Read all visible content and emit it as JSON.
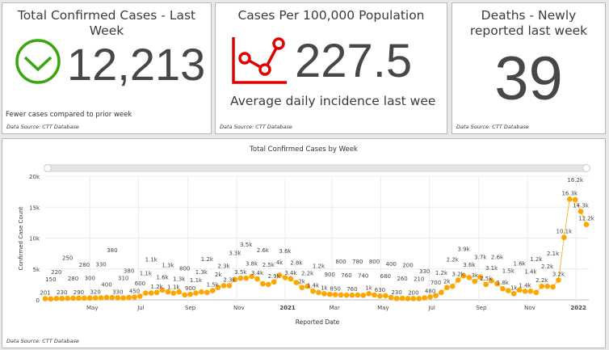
{
  "cards": [
    {
      "title": "Total Confirmed Cases - Last Week",
      "value": "12,213",
      "icon": "check-circle-icon",
      "icon_color": "#3aa60e",
      "note": "Fewer cases compared to prior week",
      "source": "Data Source: CTT Database"
    },
    {
      "title": "Cases Per 100,000 Population",
      "value": "227.5",
      "icon": "line-chart-icon",
      "icon_color": "#e00000",
      "note": "Average daily incidence last wee",
      "source": "Data Source: CTT Database"
    },
    {
      "title": "Deaths - Newly reported last week",
      "value": "39",
      "source": "Data Source: CTT Database"
    }
  ],
  "chart_source": "Data Source: CTT Database",
  "chart_data": {
    "type": "line",
    "title": "Total Confirmed Cases by Week",
    "xlabel": "Reported Date",
    "ylabel": "Confirmed Case Count",
    "ylim": [
      0,
      20000
    ],
    "grid": true,
    "color": "#ffa500",
    "yticks": [
      {
        "v": 0,
        "label": "0"
      },
      {
        "v": 5000,
        "label": "5k"
      },
      {
        "v": 10000,
        "label": "10k"
      },
      {
        "v": 15000,
        "label": "15k"
      },
      {
        "v": 20000,
        "label": "20k"
      }
    ],
    "xticks": [
      {
        "date": "2020-05-01",
        "label": "May"
      },
      {
        "date": "2020-07-01",
        "label": "Jul"
      },
      {
        "date": "2020-09-01",
        "label": "Sep"
      },
      {
        "date": "2020-11-01",
        "label": "Nov"
      },
      {
        "date": "2021-01-01",
        "label": "2021"
      },
      {
        "date": "2021-03-01",
        "label": "Mar"
      },
      {
        "date": "2021-05-01",
        "label": "May"
      },
      {
        "date": "2021-07-01",
        "label": "Jul"
      },
      {
        "date": "2021-09-01",
        "label": "Sep"
      },
      {
        "date": "2021-11-01",
        "label": "Nov"
      },
      {
        "date": "2022-01-01",
        "label": "2022"
      }
    ],
    "x": [
      "2020-03-06",
      "2020-03-13",
      "2020-03-20",
      "2020-03-27",
      "2020-04-03",
      "2020-04-10",
      "2020-04-17",
      "2020-04-24",
      "2020-05-01",
      "2020-05-08",
      "2020-05-15",
      "2020-05-22",
      "2020-05-29",
      "2020-06-05",
      "2020-06-12",
      "2020-06-19",
      "2020-06-26",
      "2020-07-03",
      "2020-07-10",
      "2020-07-17",
      "2020-07-24",
      "2020-07-31",
      "2020-08-07",
      "2020-08-14",
      "2020-08-21",
      "2020-08-28",
      "2020-09-04",
      "2020-09-11",
      "2020-09-18",
      "2020-09-25",
      "2020-10-02",
      "2020-10-09",
      "2020-10-16",
      "2020-10-23",
      "2020-10-30",
      "2020-11-06",
      "2020-11-13",
      "2020-11-20",
      "2020-11-27",
      "2020-12-04",
      "2020-12-11",
      "2020-12-18",
      "2020-12-25",
      "2021-01-01",
      "2021-01-08",
      "2021-01-15",
      "2021-01-22",
      "2021-01-29",
      "2021-02-05",
      "2021-02-12",
      "2021-02-19",
      "2021-02-26",
      "2021-03-05",
      "2021-03-12",
      "2021-03-19",
      "2021-03-26",
      "2021-04-02",
      "2021-04-09",
      "2021-04-16",
      "2021-04-23",
      "2021-04-30",
      "2021-05-07",
      "2021-05-14",
      "2021-05-21",
      "2021-05-28",
      "2021-06-04",
      "2021-06-11",
      "2021-06-18",
      "2021-06-25",
      "2021-07-02",
      "2021-07-09",
      "2021-07-16",
      "2021-07-23",
      "2021-07-30",
      "2021-08-06",
      "2021-08-13",
      "2021-08-20",
      "2021-08-27",
      "2021-09-03",
      "2021-09-10",
      "2021-09-17",
      "2021-09-24",
      "2021-10-01",
      "2021-10-08",
      "2021-10-15",
      "2021-10-22",
      "2021-10-29",
      "2021-11-05",
      "2021-11-12",
      "2021-11-19",
      "2021-11-26",
      "2021-12-03",
      "2021-12-10",
      "2021-12-17",
      "2021-12-24",
      "2021-12-31",
      "2022-01-07",
      "2022-01-14"
    ],
    "values": [
      201,
      150,
      220,
      230,
      250,
      280,
      290,
      280,
      300,
      320,
      330,
      400,
      380,
      330,
      310,
      380,
      450,
      600,
      1100,
      1100,
      1200,
      1600,
      1300,
      1100,
      1300,
      800,
      900,
      1100,
      1300,
      1200,
      1500,
      2000,
      2300,
      2300,
      3300,
      3500,
      3500,
      3800,
      3400,
      2600,
      2500,
      2900,
      4000,
      3600,
      3400,
      2800,
      2000,
      2200,
      1400,
      1200,
      1000,
      900,
      850,
      800,
      760,
      760,
      780,
      740,
      1000,
      800,
      630,
      680,
      400,
      230,
      260,
      200,
      200,
      210,
      330,
      480,
      700,
      1200,
      2000,
      2200,
      3200,
      3900,
      3600,
      3000,
      3700,
      2500,
      3100,
      2600,
      1800,
      1500,
      1000,
      1600,
      1400,
      1400,
      1200,
      2200,
      2200,
      2100,
      3200,
      10100,
      16300,
      16200,
      14300,
      12200
    ]
  }
}
